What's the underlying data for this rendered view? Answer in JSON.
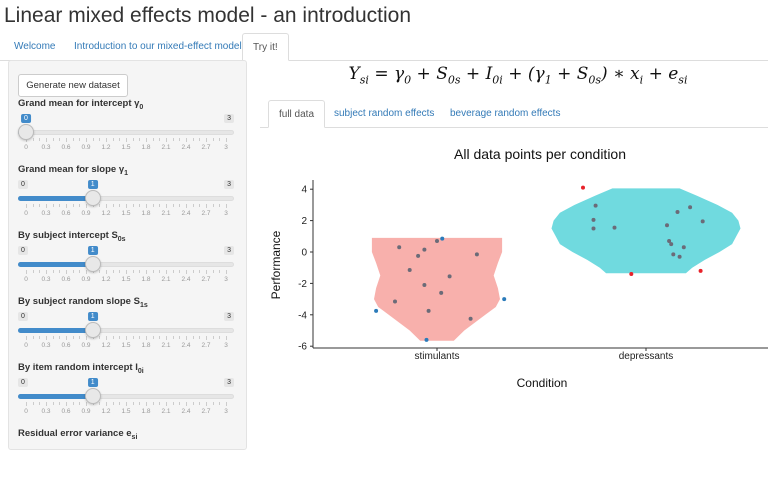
{
  "app_title": "Linear mixed effects model - an introduction",
  "main_tabs": [
    {
      "label": "Welcome",
      "active": false
    },
    {
      "label": "Introduction to our mixed-effect model",
      "active": false
    },
    {
      "label": "Try it!",
      "active": true
    }
  ],
  "sidebar": {
    "generate_button": "Generate new dataset",
    "sliders": [
      {
        "label": "Grand mean for intercept γ",
        "sub": "0",
        "min": 0,
        "max": 3,
        "value": 0
      },
      {
        "label": "Grand mean for slope γ",
        "sub": "1",
        "min": 0,
        "max": 3,
        "value": 1
      },
      {
        "label": "By subject intercept S",
        "sub": "0s",
        "min": 0,
        "max": 3,
        "value": 1
      },
      {
        "label": "By subject random slope S",
        "sub": "1s",
        "min": 0,
        "max": 3,
        "value": 1
      },
      {
        "label": "By item random intercept I",
        "sub": "0i",
        "min": 0,
        "max": 3,
        "value": 1
      }
    ],
    "tick_labels": [
      "0",
      "0.3",
      "0.6",
      "0.9",
      "1.2",
      "1.5",
      "1.8",
      "2.1",
      "2.4",
      "2.7",
      "3"
    ],
    "partial_label": {
      "label": "Residual error variance e",
      "sub": "si"
    }
  },
  "formula": [
    [
      "Y",
      "si"
    ],
    [
      " = γ",
      "0"
    ],
    [
      " + S",
      "0s"
    ],
    [
      " + I",
      "0i"
    ],
    [
      " + (γ",
      "1"
    ],
    [
      " + S",
      "0s"
    ],
    [
      ") ∗ x",
      "i"
    ],
    [
      " + e",
      "si"
    ]
  ],
  "sub_tabs": [
    {
      "label": "full data",
      "active": true
    },
    {
      "label": "subject random effects",
      "active": false
    },
    {
      "label": "beverage random effects",
      "active": false
    }
  ],
  "chart_data": {
    "type": "violin+scatter",
    "title": "All data points per condition",
    "xlabel": "Condition",
    "ylabel": "Performance",
    "categories": [
      "stimulants",
      "depressants"
    ],
    "yticks": [
      4,
      2,
      0,
      -2,
      -4,
      -6
    ],
    "ylim": [
      -6,
      4.5
    ],
    "violin_colors": [
      "#f8b0ac",
      "#70dadf"
    ],
    "point_colors": {
      "normal": "#6b6b78",
      "blue": "#2b7bba",
      "red": "#e8222a"
    },
    "violins": [
      {
        "category": "stimulants",
        "profile": [
          [
            0.9,
            0.31
          ],
          [
            0.5,
            0.31
          ],
          [
            0,
            0.31
          ],
          [
            -0.7,
            0.29
          ],
          [
            -1.5,
            0.27
          ],
          [
            -2.3,
            0.29
          ],
          [
            -3,
            0.3
          ],
          [
            -3.5,
            0.28
          ],
          [
            -4,
            0.23
          ],
          [
            -4.5,
            0.18
          ],
          [
            -5,
            0.13
          ],
          [
            -5.65,
            0.08
          ]
        ]
      },
      {
        "category": "depressants",
        "profile": [
          [
            4.05,
            0.16
          ],
          [
            3.6,
            0.24
          ],
          [
            3,
            0.34
          ],
          [
            2.5,
            0.41
          ],
          [
            2,
            0.44
          ],
          [
            1.5,
            0.45
          ],
          [
            1,
            0.43
          ],
          [
            0.5,
            0.41
          ],
          [
            0,
            0.35
          ],
          [
            -0.5,
            0.28
          ],
          [
            -1,
            0.22
          ],
          [
            -1.35,
            0.19
          ]
        ]
      }
    ],
    "points": [
      {
        "category": "stimulants",
        "jitter": -0.29,
        "y": -3.75,
        "color": "blue"
      },
      {
        "category": "stimulants",
        "jitter": -0.18,
        "y": 0.3,
        "color": "normal"
      },
      {
        "category": "stimulants",
        "jitter": -0.06,
        "y": 0.15,
        "color": "normal"
      },
      {
        "category": "stimulants",
        "jitter": -0.09,
        "y": -0.25,
        "color": "normal"
      },
      {
        "category": "stimulants",
        "jitter": -0.13,
        "y": -1.15,
        "color": "normal"
      },
      {
        "category": "stimulants",
        "jitter": 0.0,
        "y": 0.7,
        "color": "normal"
      },
      {
        "category": "stimulants",
        "jitter": 0.025,
        "y": 0.85,
        "color": "blue"
      },
      {
        "category": "stimulants",
        "jitter": 0.19,
        "y": -0.15,
        "color": "normal"
      },
      {
        "category": "stimulants",
        "jitter": 0.06,
        "y": -1.55,
        "color": "normal"
      },
      {
        "category": "stimulants",
        "jitter": -0.06,
        "y": -2.1,
        "color": "normal"
      },
      {
        "category": "stimulants",
        "jitter": 0.02,
        "y": -2.6,
        "color": "normal"
      },
      {
        "category": "stimulants",
        "jitter": -0.2,
        "y": -3.15,
        "color": "normal"
      },
      {
        "category": "stimulants",
        "jitter": -0.04,
        "y": -3.75,
        "color": "normal"
      },
      {
        "category": "stimulants",
        "jitter": 0.16,
        "y": -4.25,
        "color": "normal"
      },
      {
        "category": "stimulants",
        "jitter": -0.05,
        "y": -5.6,
        "color": "blue"
      },
      {
        "category": "stimulants",
        "jitter": 0.32,
        "y": -3.0,
        "color": "blue"
      },
      {
        "category": "depressants",
        "jitter": -0.3,
        "y": 4.1,
        "color": "red"
      },
      {
        "category": "depressants",
        "jitter": -0.24,
        "y": 2.95,
        "color": "normal"
      },
      {
        "category": "depressants",
        "jitter": -0.25,
        "y": 2.05,
        "color": "normal"
      },
      {
        "category": "depressants",
        "jitter": -0.25,
        "y": 1.5,
        "color": "normal"
      },
      {
        "category": "depressants",
        "jitter": -0.15,
        "y": 1.55,
        "color": "normal"
      },
      {
        "category": "depressants",
        "jitter": -0.07,
        "y": -1.4,
        "color": "red"
      },
      {
        "category": "depressants",
        "jitter": 0.1,
        "y": 1.7,
        "color": "normal"
      },
      {
        "category": "depressants",
        "jitter": 0.15,
        "y": 2.55,
        "color": "normal"
      },
      {
        "category": "depressants",
        "jitter": 0.21,
        "y": 2.85,
        "color": "normal"
      },
      {
        "category": "depressants",
        "jitter": 0.27,
        "y": 1.95,
        "color": "normal"
      },
      {
        "category": "depressants",
        "jitter": 0.11,
        "y": 0.7,
        "color": "normal"
      },
      {
        "category": "depressants",
        "jitter": 0.12,
        "y": 0.5,
        "color": "normal"
      },
      {
        "category": "depressants",
        "jitter": 0.18,
        "y": 0.3,
        "color": "normal"
      },
      {
        "category": "depressants",
        "jitter": 0.13,
        "y": -0.15,
        "color": "normal"
      },
      {
        "category": "depressants",
        "jitter": 0.16,
        "y": -0.3,
        "color": "normal"
      },
      {
        "category": "depressants",
        "jitter": 0.26,
        "y": -1.2,
        "color": "red"
      }
    ]
  }
}
